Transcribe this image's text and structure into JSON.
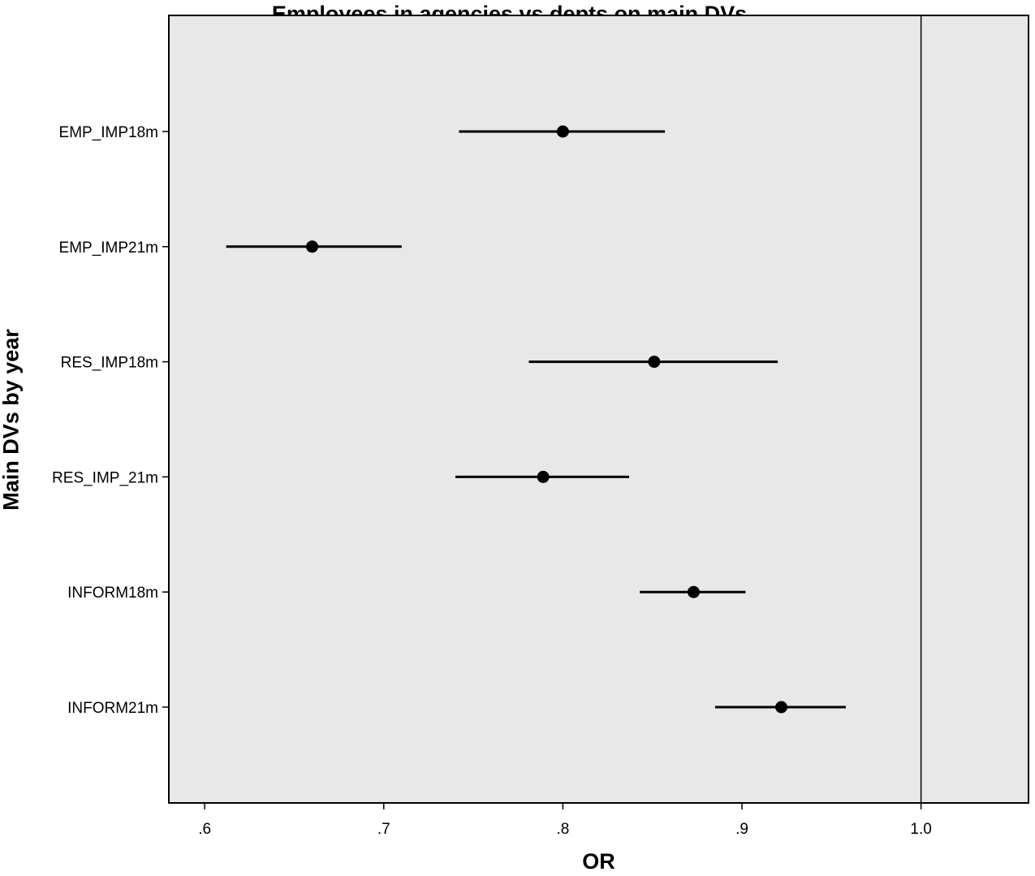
{
  "chart_data": {
    "type": "forest",
    "title": "Employees in agencies vs depts on main DVs",
    "xlabel": "OR",
    "ylabel": "Main DVs by year",
    "xlim": [
      0.58,
      1.06
    ],
    "xticks": [
      0.6,
      0.7,
      0.8,
      0.9,
      1.0
    ],
    "xtick_labels": [
      ".6",
      ".7",
      ".8",
      ".9",
      "1.0"
    ],
    "reference_line": 1.0,
    "categories": [
      "EMP_IMP18m",
      "EMP_IMP21m",
      "RES_IMP18m",
      "RES_IMP_21m",
      "INFORM18m",
      "INFORM21m"
    ],
    "estimates": [
      0.8,
      0.66,
      0.851,
      0.789,
      0.873,
      0.922
    ],
    "ci_lower": [
      0.742,
      0.612,
      0.781,
      0.74,
      0.843,
      0.885
    ],
    "ci_upper": [
      0.857,
      0.71,
      0.92,
      0.837,
      0.902,
      0.958
    ],
    "grid": false,
    "plot_background": "#e8e8e8",
    "mark_color": "#000000"
  }
}
